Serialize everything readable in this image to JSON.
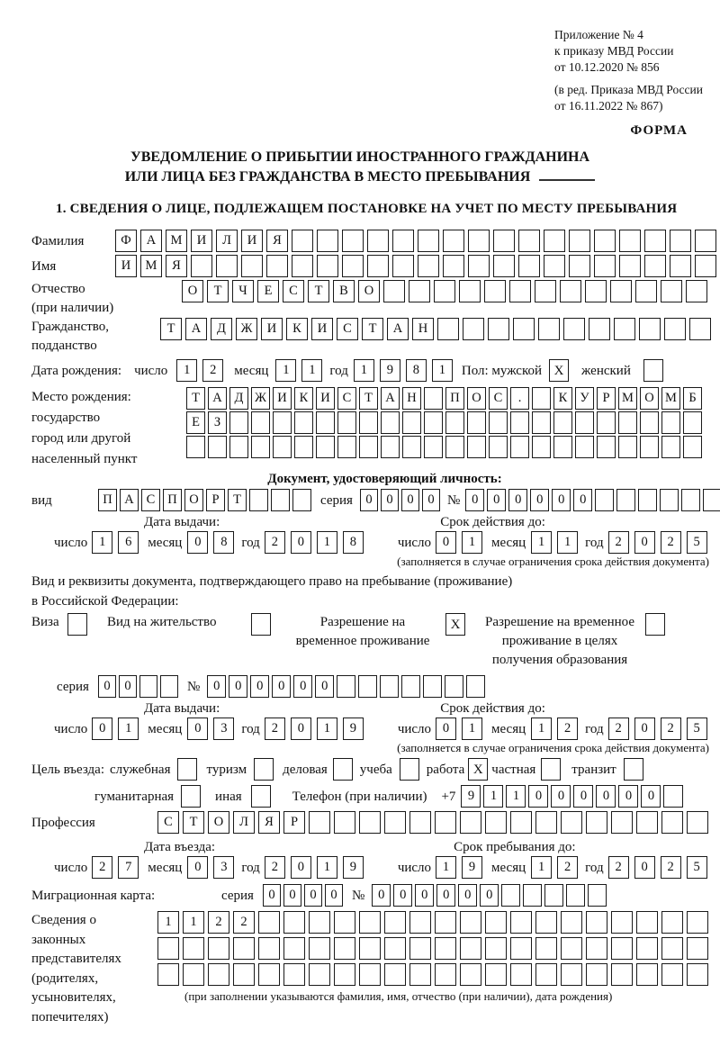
{
  "annex": {
    "lines": [
      "Приложение № 4",
      "к приказу МВД России",
      "от 10.12.2020 № 856",
      "(в ред. Приказа МВД России",
      "от 16.11.2022 № 867)"
    ]
  },
  "forma_label": "ФОРМА",
  "title": {
    "line1": "УВЕДОМЛЕНИЕ О ПРИБЫТИИ ИНОСТРАННОГО ГРАЖДАНИНА",
    "line2": "ИЛИ ЛИЦА БЕЗ ГРАЖДАНСТВА В МЕСТО ПРЕБЫВАНИЯ"
  },
  "section1_title": "1. СВЕДЕНИЯ О ЛИЦЕ, ПОДЛЕЖАЩЕМ ПОСТАНОВКЕ НА УЧЕТ ПО МЕСТУ ПРЕБЫВАНИЯ",
  "labels": {
    "surname": "Фамилия",
    "name": "Имя",
    "patronymic_lines": [
      "Отчество",
      "(при наличии)"
    ],
    "citizenship_lines": [
      "Гражданство,",
      "подданство"
    ],
    "birth_date": "Дата рождения:",
    "day": "число",
    "month": "месяц",
    "year": "год",
    "sex_male": "Пол: мужской",
    "sex_female": "женский",
    "birthplace_lines": [
      "Место рождения:",
      "государство",
      "город или другой",
      "населенный пункт"
    ],
    "identity_header": "Документ, удостоверяющий личность:",
    "kind": "вид",
    "series": "серия",
    "number_sign": "№",
    "issue_date": "Дата выдачи:",
    "valid_until": "Срок действия до:",
    "residence_text_lines": [
      "Вид и реквизиты документа, подтверждающего право на пребывание (проживание)",
      "в Российской Федерации:"
    ],
    "visa": "Виза",
    "residence_permit": "Вид на жительство",
    "temp_residence": "Разрешение на временное проживание",
    "temp_residence_edu": "Разрешение на временное проживание в целях получения образования",
    "purpose": "Цель въезда:",
    "official": "служебная",
    "tourism": "туризм",
    "business": "деловая",
    "study": "учеба",
    "work": "работа",
    "private": "частная",
    "transit": "транзит",
    "humanitarian": "гуманитарная",
    "other": "иная",
    "phone": "Телефон (при наличии)",
    "phone_prefix": "+7",
    "profession": "Профессия",
    "entry_date": "Дата въезда:",
    "stay_until": "Срок пребывания до:",
    "migration_card": "Миграционная карта:",
    "reps_lines": [
      "Сведения о",
      "законных",
      "представителях",
      "(родителях,",
      "усыновителях,",
      "попечителях)"
    ]
  },
  "person": {
    "surname": {
      "value": "ФАМИЛИЯ",
      "length": 24
    },
    "name": {
      "value": "ИМЯ",
      "length": 24
    },
    "patronymic": {
      "value": "ОТЧЕСТВО",
      "length": 21
    },
    "citizenship": {
      "value": "ТАДЖИКИСТАН",
      "length": 22
    },
    "birth": {
      "day": {
        "value": "12",
        "length": 2
      },
      "month": {
        "value": "11",
        "length": 2
      },
      "year": {
        "value": "1981",
        "length": 4
      }
    },
    "sex": {
      "male": true,
      "female": false
    },
    "birthplace_row1": {
      "value": "ТАДЖИКИСТАН ПОС. КУРМОМБ",
      "length": 24
    },
    "birthplace_row2": {
      "value": "ЕЗ",
      "length": 24
    },
    "birthplace_row3": {
      "value": "",
      "length": 24
    }
  },
  "identity_doc": {
    "kind": {
      "value": "ПАСПОРТ",
      "length": 10
    },
    "series": {
      "value": "0000",
      "length": 4
    },
    "number": {
      "value": "000000",
      "length": 12
    },
    "issue": {
      "day": {
        "value": "16",
        "length": 2
      },
      "month": {
        "value": "08",
        "length": 2
      },
      "year": {
        "value": "2018",
        "length": 4
      }
    },
    "valid": {
      "day": {
        "value": "01",
        "length": 2
      },
      "month": {
        "value": "11",
        "length": 2
      },
      "year": {
        "value": "2025",
        "length": 4
      }
    }
  },
  "residence_doc": {
    "type": {
      "visa": false,
      "residence_permit": false,
      "temp_residence": true,
      "temp_residence_edu": false
    },
    "series": {
      "value": "00",
      "length": 4
    },
    "number": {
      "value": "000000",
      "length": 13
    },
    "issue": {
      "day": {
        "value": "01",
        "length": 2
      },
      "month": {
        "value": "03",
        "length": 2
      },
      "year": {
        "value": "2019",
        "length": 4
      }
    },
    "valid": {
      "day": {
        "value": "01",
        "length": 2
      },
      "month": {
        "value": "12",
        "length": 2
      },
      "year": {
        "value": "2025",
        "length": 4
      }
    }
  },
  "visit_purpose": {
    "official": false,
    "tourism": false,
    "business": false,
    "study": false,
    "work": true,
    "private": false,
    "transit": false,
    "humanitarian": false,
    "other": false
  },
  "phone": {
    "digits": {
      "value": "911000000",
      "length": 10
    }
  },
  "profession": {
    "value": "СТОЛЯР",
    "length": 22
  },
  "entry": {
    "date": {
      "day": {
        "value": "27",
        "length": 2
      },
      "month": {
        "value": "03",
        "length": 2
      },
      "year": {
        "value": "2019",
        "length": 4
      }
    },
    "stay_until": {
      "day": {
        "value": "19",
        "length": 2
      },
      "month": {
        "value": "12",
        "length": 2
      },
      "year": {
        "value": "2025",
        "length": 4
      }
    }
  },
  "migration_card": {
    "series": {
      "value": "0000",
      "length": 4
    },
    "number": {
      "value": "000000",
      "length": 11
    }
  },
  "representatives": {
    "row1": {
      "value": "1122",
      "length": 22
    },
    "row2": {
      "value": "",
      "length": 22
    },
    "row3": {
      "value": "",
      "length": 22
    }
  },
  "notes": {
    "limited_validity": "(заполняется в случае ограничения срока действия документа)",
    "representatives": "(при заполнении указываются фамилия, имя, отчество (при наличии), дата рождения)"
  }
}
